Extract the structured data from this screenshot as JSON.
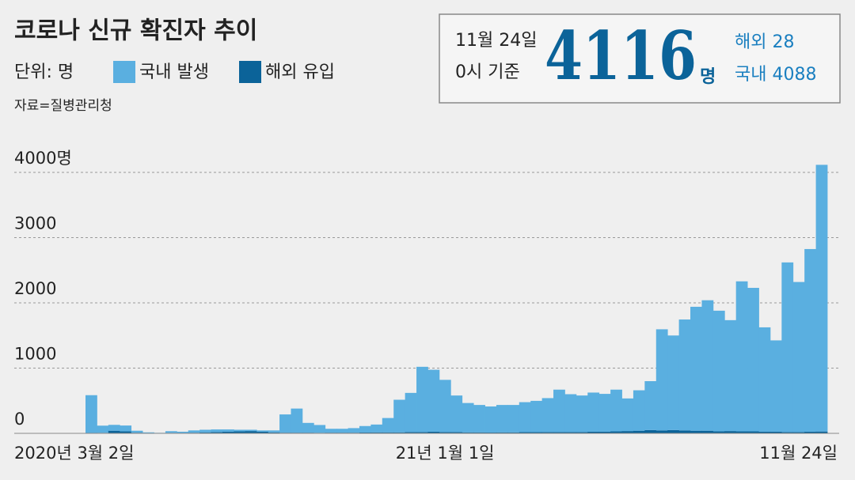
{
  "chart_data": {
    "type": "bar",
    "title": "코로나 신규 확진자 추이",
    "unit_label": "단위: 명",
    "source": "자료=질병관리청",
    "headline": {
      "date": "11월 24일",
      "basis": "0시 기준",
      "total": 4116,
      "unit": "명",
      "overseas": "해외 28",
      "domestic": "국내 4088"
    },
    "categories": [
      "2020년 3월 2일",
      null,
      null,
      null,
      null,
      null,
      null,
      null,
      null,
      null,
      null,
      null,
      null,
      null,
      null,
      null,
      null,
      null,
      null,
      null,
      null,
      null,
      null,
      null,
      null,
      null,
      null,
      null,
      null,
      null,
      null,
      "21년 1월 1일",
      null,
      null,
      null,
      null,
      null,
      null,
      null,
      null,
      null,
      null,
      null,
      null,
      null,
      null,
      null,
      null,
      null,
      null,
      null,
      null,
      null,
      null,
      null,
      null,
      null,
      null,
      null,
      null,
      null,
      null,
      null,
      null,
      "11월 24일"
    ],
    "series": [
      {
        "name": "해외 유입",
        "color": "#0b6399",
        "values": [
          5,
          8,
          40,
          30,
          10,
          5,
          3,
          8,
          5,
          10,
          15,
          20,
          25,
          30,
          35,
          25,
          15,
          10,
          10,
          10,
          8,
          10,
          10,
          10,
          12,
          15,
          15,
          15,
          20,
          20,
          25,
          20,
          20,
          15,
          15,
          12,
          15,
          15,
          18,
          18,
          20,
          20,
          20,
          20,
          25,
          25,
          30,
          35,
          40,
          50,
          45,
          50,
          45,
          40,
          40,
          30,
          35,
          30,
          30,
          25,
          25,
          20,
          20,
          25,
          28
        ]
      },
      {
        "name": "국내 발생",
        "color": "#5aafe0",
        "values": [
          580,
          110,
          90,
          90,
          30,
          10,
          5,
          25,
          20,
          35,
          40,
          40,
          35,
          25,
          20,
          20,
          30,
          280,
          370,
          150,
          120,
          60,
          60,
          70,
          100,
          120,
          220,
          500,
          600,
          1000,
          950,
          800,
          560,
          450,
          420,
          400,
          420,
          420,
          460,
          480,
          520,
          650,
          580,
          560,
          600,
          580,
          640,
          500,
          620,
          750,
          1550,
          1450,
          1700,
          1900,
          2000,
          1850,
          1700,
          2300,
          2200,
          1600,
          1400,
          2600,
          2300,
          2800,
          4088
        ]
      }
    ],
    "ylim": [
      0,
      4200
    ],
    "yticks": [
      0,
      1000,
      2000,
      3000,
      {
        "value": 4000,
        "label": "4000명"
      }
    ],
    "grid": true
  }
}
